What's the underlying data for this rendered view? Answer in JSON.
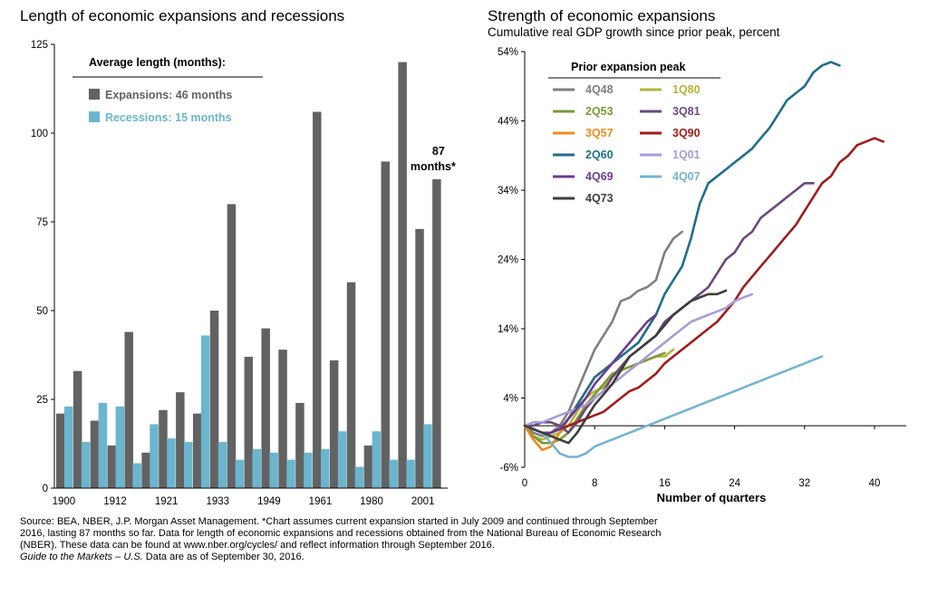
{
  "left_chart": {
    "title": "Length of economic expansions and recessions",
    "legend_title": "Average length (months):",
    "colors": {
      "expansion": "#626262",
      "recession": "#6bb5cf"
    },
    "callout_line1": "87",
    "callout_line2": "months*"
  },
  "right_chart": {
    "title": "Strength of economic expansions",
    "subtitle": "Cumulative real GDP growth since prior peak, percent",
    "legend_title": "Prior expansion peak"
  },
  "footer": {
    "line1": "Source: BEA, NBER, J.P. Morgan Asset Management. *Chart assumes current expansion started in July 2009 and continued through September",
    "line2": "2016, lasting 87 months so far. Data for length of economic expansions and recessions obtained from the National Bureau of Economic Research",
    "line3": "(NBER). These data can be found at www.nber.org/cycles/ and reflect information through September 2016.",
    "line4_italic": "Guide to the Markets – U.S.",
    "line4_rest": " Data are as of September 30, 2016."
  },
  "chart_data": [
    {
      "type": "bar",
      "title": "Length of economic expansions and recessions",
      "ylim": [
        0,
        125
      ],
      "yticks": [
        0,
        25,
        50,
        75,
        100,
        125
      ],
      "xtick_labels": [
        "1900",
        "1912",
        "1921",
        "1933",
        "1949",
        "1961",
        "1980",
        "2001"
      ],
      "xtick_group_index": [
        0,
        3,
        6,
        9,
        12,
        15,
        18,
        21
      ],
      "series": [
        {
          "name": "Expansions: 46 months",
          "color": "#626262",
          "values": [
            21,
            33,
            19,
            12,
            44,
            10,
            22,
            27,
            21,
            50,
            80,
            37,
            45,
            39,
            24,
            106,
            36,
            58,
            12,
            92,
            120,
            73,
            87
          ]
        },
        {
          "name": "Recessions: 15 months",
          "color": "#6bb5cf",
          "values": [
            23,
            13,
            24,
            23,
            7,
            18,
            14,
            13,
            43,
            13,
            8,
            11,
            10,
            8,
            10,
            11,
            16,
            6,
            16,
            8,
            8,
            18,
            null
          ]
        }
      ]
    },
    {
      "type": "line",
      "title": "Strength of economic expansions",
      "subtitle": "Cumulative real GDP growth since prior peak, percent",
      "xlabel": "Number of quarters",
      "ylabel": "",
      "xlim": [
        0,
        42
      ],
      "ylim": [
        -6,
        54
      ],
      "xticks": [
        0,
        8,
        16,
        24,
        32,
        40
      ],
      "yticks": [
        -6,
        4,
        14,
        24,
        34,
        44,
        54
      ],
      "ytick_labels": [
        "-6%",
        "4%",
        "14%",
        "24%",
        "34%",
        "44%",
        "54%"
      ],
      "series": [
        {
          "name": "4Q48",
          "color": "#7f7f7f",
          "values": [
            0,
            -1,
            -1.5,
            -1,
            0,
            2,
            5,
            8,
            11,
            13,
            15,
            18,
            18.5,
            19.5,
            20,
            21,
            25,
            27,
            28
          ]
        },
        {
          "name": "1Q80",
          "color": "#b4b43a",
          "values": [
            0,
            -1.5,
            -2,
            -1.5,
            -1,
            0,
            2,
            4,
            5,
            5.5,
            7,
            8,
            8.5,
            9,
            9.5,
            10,
            10,
            11
          ]
        },
        {
          "name": "2Q53",
          "color": "#7a9a38",
          "values": [
            0,
            -1.5,
            -2.5,
            -2.5,
            -2,
            -1,
            1,
            3,
            4.5,
            6,
            7.5,
            8,
            8.5,
            9,
            9.5,
            10,
            10.5
          ]
        },
        {
          "name": "3Q81",
          "color": "#6b4a7a",
          "values": [
            0,
            0,
            0.5,
            0.5,
            0,
            -1,
            0.5,
            2.5,
            4,
            5,
            7,
            8.5,
            10,
            11,
            12,
            13,
            15,
            16,
            17,
            18,
            19,
            20,
            22,
            24,
            25,
            27,
            28,
            30,
            31,
            32,
            33,
            34,
            35,
            35
          ]
        },
        {
          "name": "3Q57",
          "color": "#f08a1c",
          "values": [
            0,
            -2,
            -3.5,
            -3,
            -1,
            1,
            3,
            5,
            7,
            8
          ]
        },
        {
          "name": "3Q90",
          "color": "#a11c1c",
          "values": [
            0,
            -0.5,
            -1,
            -1,
            -0.5,
            0,
            0.5,
            1,
            1.5,
            2,
            3,
            4,
            5,
            5.5,
            6.5,
            7.5,
            9,
            10,
            11,
            12,
            13,
            14,
            15,
            16.5,
            18,
            20,
            21.5,
            23,
            24.5,
            26,
            27.5,
            29,
            31,
            33,
            35,
            36,
            38,
            39,
            40.5,
            41,
            41.5,
            41
          ]
        },
        {
          "name": "2Q60",
          "color": "#1f6e8c",
          "values": [
            0,
            -0.5,
            -1,
            -1,
            -0.5,
            1,
            3,
            5,
            7,
            8,
            9,
            10,
            11,
            12,
            14,
            16,
            19,
            21,
            23,
            27,
            32,
            35,
            36,
            37,
            38,
            39,
            40,
            41.5,
            43,
            45,
            47,
            48,
            49,
            51,
            52,
            52.5,
            52
          ]
        },
        {
          "name": "1Q01",
          "color": "#a99cd6",
          "values": [
            0,
            0.5,
            0.5,
            1,
            1.5,
            2,
            2.5,
            3,
            4,
            5,
            6,
            7,
            8,
            9,
            10,
            11,
            12,
            13,
            14,
            15,
            15.5,
            16,
            16.5,
            17,
            18,
            18.5,
            19
          ]
        },
        {
          "name": "4Q69",
          "color": "#6a3b94",
          "values": [
            0,
            -0.5,
            -1,
            -1,
            -0.5,
            1,
            2.5,
            4,
            6,
            7.5,
            9,
            10.5,
            12,
            13.5,
            15,
            16
          ]
        },
        {
          "name": "4Q07",
          "color": "#74b4cf",
          "values": [
            0,
            -0.5,
            -1,
            -2.5,
            -4,
            -4.5,
            -4.5,
            -4,
            -3,
            -2.5,
            -2,
            -1.5,
            -1,
            -0.5,
            0,
            0.5,
            1,
            1.5,
            2,
            2.5,
            3,
            3.5,
            4,
            4.5,
            5,
            5.5,
            6,
            6.5,
            7,
            7.5,
            8,
            8.5,
            9,
            9.5,
            10
          ]
        },
        {
          "name": "4Q73",
          "color": "#3d3d3d",
          "values": [
            0,
            -0.5,
            -1,
            -1.5,
            -2,
            -2.5,
            -1,
            1,
            3,
            4.5,
            6,
            8,
            10,
            11,
            12,
            13,
            14.5,
            16,
            17,
            18,
            18.5,
            19,
            19,
            19.5
          ]
        }
      ]
    }
  ]
}
